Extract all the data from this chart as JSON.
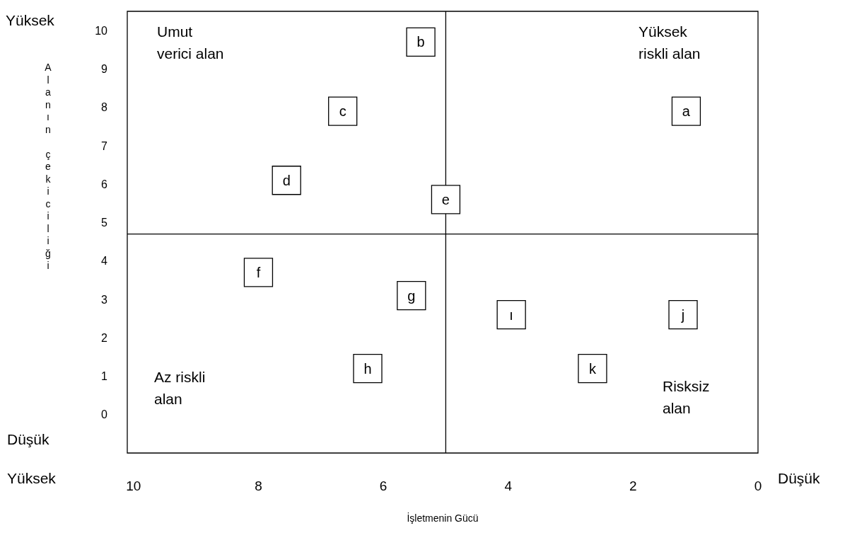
{
  "chart_data": {
    "type": "scatter",
    "xlabel": "İşletmenin Gücü",
    "ylabel": "Alanın çekiciliği",
    "xlim": [
      10.1,
      0
    ],
    "xticks": [
      10,
      8,
      6,
      4,
      2,
      0
    ],
    "ylim": [
      -1,
      10.5
    ],
    "yticks": [
      0,
      1,
      2,
      3,
      4,
      5,
      6,
      7,
      8,
      9,
      10
    ],
    "marker": "square",
    "ref_lines": [
      {
        "axis": "x",
        "value": 5,
        "color": "#000000"
      },
      {
        "axis": "y",
        "value": 4.7,
        "color": "#000000"
      }
    ],
    "annotations": [
      "Umut\nverici alan",
      "Yüksek\nriskli alan",
      "Az riskli\nalan",
      "Risksiz\nalan",
      "Yüksek",
      "Düşük",
      "Yüksek",
      "Düşük"
    ],
    "series": [
      {
        "name": "a",
        "color": "#000000",
        "x": [
          1.15
        ],
        "values": [
          7.9
        ]
      },
      {
        "name": "b",
        "color": "#000000",
        "x": [
          5.4
        ],
        "values": [
          9.7
        ]
      },
      {
        "name": "c",
        "color": "#000000",
        "x": [
          6.65
        ],
        "values": [
          7.9
        ]
      },
      {
        "name": "d",
        "color": "#000000",
        "x": [
          7.55
        ],
        "values": [
          6.1
        ]
      },
      {
        "name": "e",
        "color": "#000000",
        "x": [
          5.0
        ],
        "values": [
          5.6
        ]
      },
      {
        "name": "f",
        "color": "#000000",
        "x": [
          8.0
        ],
        "values": [
          3.7
        ]
      },
      {
        "name": "g",
        "color": "#000000",
        "x": [
          5.55
        ],
        "values": [
          3.1
        ]
      },
      {
        "name": "h",
        "color": "#000000",
        "x": [
          6.25
        ],
        "values": [
          1.2
        ]
      },
      {
        "name": "ı",
        "color": "#000000",
        "x": [
          3.95
        ],
        "values": [
          2.6
        ]
      },
      {
        "name": "j",
        "color": "#000000",
        "x": [
          1.2
        ],
        "values": [
          2.6
        ]
      },
      {
        "name": "k",
        "color": "#000000",
        "x": [
          2.65
        ],
        "values": [
          1.2
        ]
      }
    ]
  }
}
